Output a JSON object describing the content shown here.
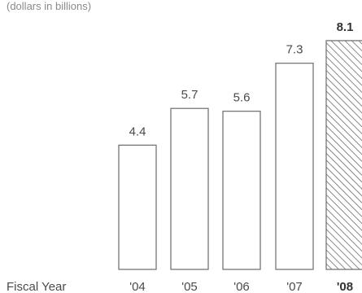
{
  "chart_data": {
    "type": "bar",
    "subtitle": "(dollars in billions)",
    "xlabel": "Fiscal Year",
    "categories": [
      "'04",
      "'05",
      "'06",
      "'07",
      "'08"
    ],
    "values": [
      4.4,
      5.7,
      5.6,
      7.3,
      8.1
    ],
    "value_labels": [
      "4.4",
      "5.7",
      "5.6",
      "7.3",
      "8.1"
    ],
    "highlight_category": "'08",
    "ylim": [
      0,
      8.5
    ],
    "grid": false,
    "colors": {
      "bar_stroke": "#6b6b6b",
      "bar_fill": "#ffffff",
      "hatch": "#6b6b6b",
      "text": "#4a4a4a"
    }
  }
}
